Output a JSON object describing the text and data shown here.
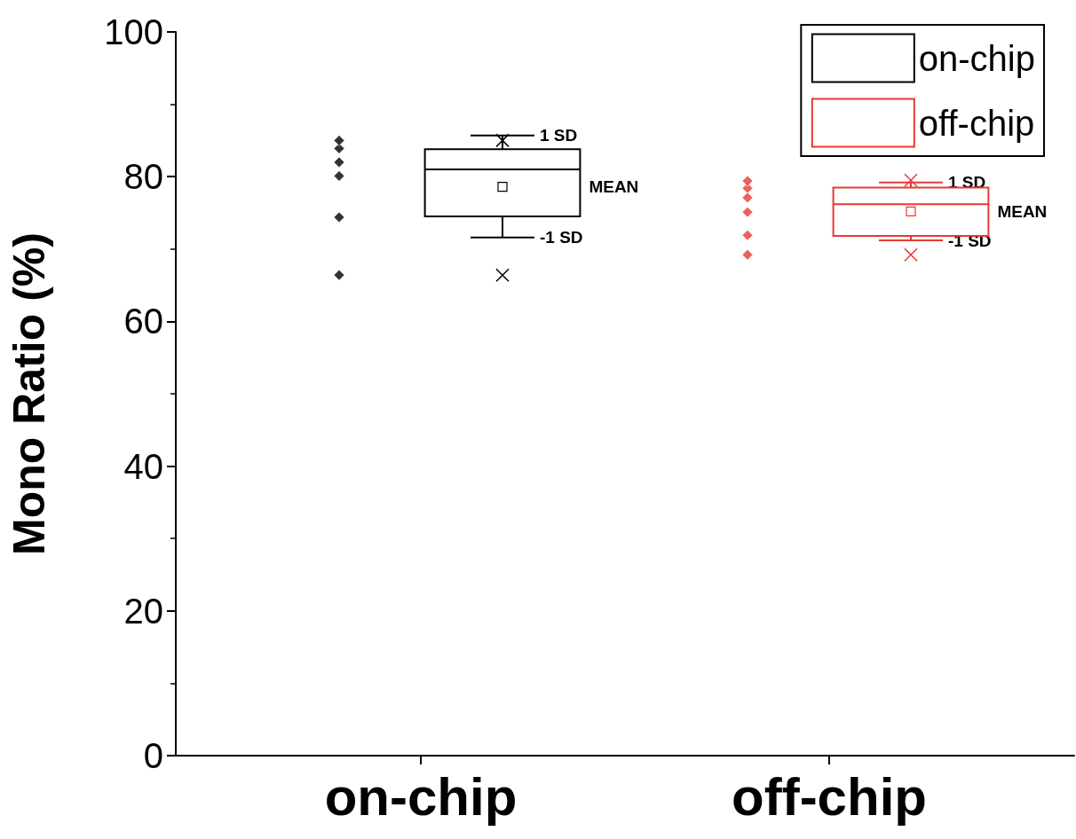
{
  "chart_data": {
    "type": "box",
    "ylabel": "Mono Ratio (%)",
    "categories": [
      "on-chip",
      "off-chip"
    ],
    "ylim": [
      0,
      100
    ],
    "yticks": [
      0,
      20,
      40,
      60,
      80,
      100
    ],
    "grid": false,
    "legend": "top right",
    "marker": "diamond",
    "series": [
      {
        "name": "on-chip",
        "color": "#000000",
        "boxes": [
          {
            "low": 71.6,
            "q1": 74.5,
            "median": 81.0,
            "q3": 83.8,
            "high": 85.7,
            "mean": 78.6,
            "outliers": [
              85.0,
              66.4
            ]
          },
          null
        ]
      },
      {
        "name": "off-chip",
        "color": "#e53935",
        "boxes": [
          null,
          {
            "low": 71.2,
            "q1": 71.8,
            "median": 76.2,
            "q3": 78.5,
            "high": 79.2,
            "mean": 75.2,
            "outliers": [
              79.5,
              69.2
            ]
          }
        ]
      },
      {
        "type": "scatter",
        "color": "#000000",
        "x": [
          "on-chip",
          "on-chip",
          "on-chip",
          "on-chip",
          "on-chip",
          "on-chip"
        ],
        "values": [
          83.9,
          85.0,
          80.1,
          82.0,
          74.4,
          66.4
        ]
      },
      {
        "type": "scatter",
        "color": "#e53935",
        "x": [
          "off-chip",
          "off-chip",
          "off-chip",
          "off-chip",
          "off-chip",
          "off-chip"
        ],
        "values": [
          78.4,
          77.1,
          75.1,
          71.9,
          69.2,
          79.4
        ]
      }
    ],
    "annotations": [
      "1 SD",
      "MEAN",
      "-1 SD",
      "1 SD",
      "MEAN",
      "-1 SD"
    ]
  }
}
